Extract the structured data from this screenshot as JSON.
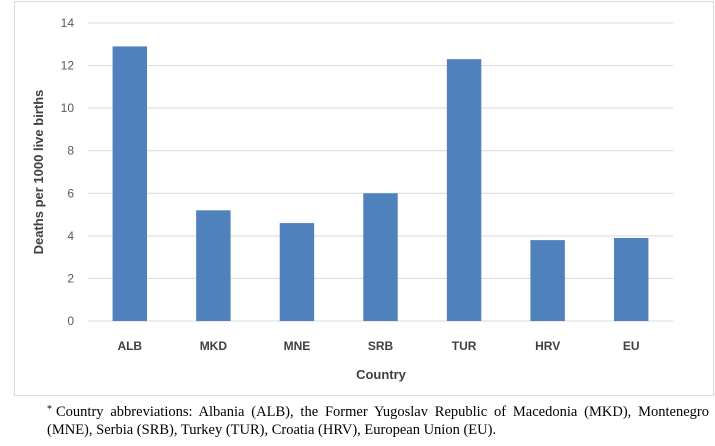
{
  "chart_data": {
    "type": "bar",
    "categories": [
      "ALB",
      "MKD",
      "MNE",
      "SRB",
      "TUR",
      "HRV",
      "EU"
    ],
    "values": [
      12.9,
      5.2,
      4.6,
      6.0,
      12.3,
      3.8,
      3.9
    ],
    "xlabel": "Country",
    "ylabel": "Deaths per 1000 live births",
    "ylim": [
      0,
      14
    ],
    "yticks": [
      0,
      2,
      4,
      6,
      8,
      10,
      12,
      14
    ],
    "grid": true,
    "legend": "none",
    "bar_color": "#4f81bd"
  },
  "footnote": {
    "marker": "*",
    "text": "Country abbreviations: Albania (ALB), the Former Yugoslav Republic of Macedonia (MKD), Montenegro (MNE), Serbia (SRB), Turkey (TUR), Croatia (HRV), European Union (EU)."
  }
}
